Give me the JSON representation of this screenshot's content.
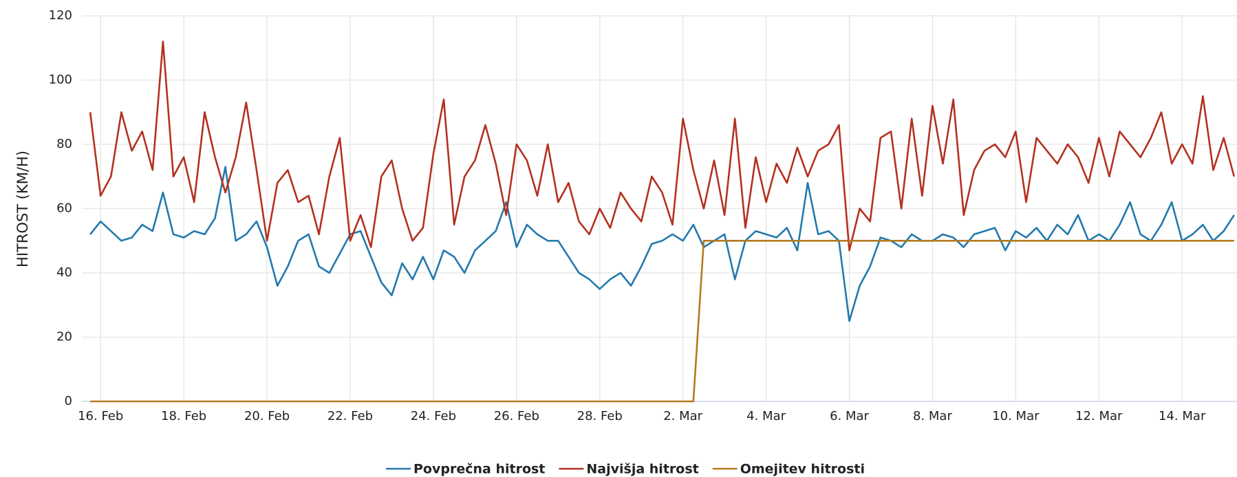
{
  "chart_data": {
    "type": "line",
    "y_label": "HITROST (KM/H)",
    "x": [
      15.75,
      16,
      16.25,
      16.5,
      16.75,
      17,
      17.25,
      17.5,
      17.75,
      18,
      18.25,
      18.5,
      18.75,
      19,
      19.25,
      19.5,
      19.75,
      20,
      20.25,
      20.5,
      20.75,
      21,
      21.25,
      21.5,
      21.75,
      22,
      22.25,
      22.5,
      22.75,
      23,
      23.25,
      23.5,
      23.75,
      24,
      24.25,
      24.5,
      24.75,
      25,
      25.25,
      25.5,
      25.75,
      26,
      26.25,
      26.5,
      26.75,
      27,
      27.25,
      27.5,
      27.75,
      28,
      28.25,
      28.5,
      28.75,
      29,
      29.25,
      29.5,
      29.75,
      30,
      30.25,
      30.5,
      30.75,
      31,
      31.25,
      31.5,
      31.75,
      32,
      32.25,
      32.5,
      32.75,
      33,
      33.25,
      33.5,
      33.75,
      34,
      34.25,
      34.5,
      34.75,
      35,
      35.25,
      35.5,
      35.75,
      36,
      36.25,
      36.5,
      36.75,
      37,
      37.25,
      37.5,
      37.75,
      38,
      38.25,
      38.5,
      38.75,
      39,
      39.25,
      39.5,
      39.75,
      40,
      40.25,
      40.5,
      40.75,
      41,
      41.25,
      41.5,
      41.75,
      42,
      42.25,
      42.5,
      42.75,
      43,
      43.25
    ],
    "series": [
      {
        "name": "Povprečna hitrost",
        "color": "#2279ad",
        "values": [
          52,
          56,
          53,
          50,
          51,
          55,
          53,
          65,
          52,
          51,
          53,
          52,
          57,
          73,
          50,
          52,
          56,
          48,
          36,
          42,
          50,
          52,
          42,
          40,
          46,
          52,
          53,
          45,
          37,
          33,
          43,
          38,
          45,
          38,
          47,
          45,
          40,
          47,
          50,
          53,
          62,
          48,
          55,
          52,
          50,
          50,
          45,
          40,
          38,
          35,
          38,
          40,
          36,
          42,
          49,
          50,
          52,
          50,
          55,
          48,
          50,
          52,
          38,
          50,
          53,
          52,
          51,
          54,
          47,
          68,
          52,
          53,
          50,
          25,
          36,
          42,
          51,
          50,
          48,
          52,
          50,
          50,
          52,
          51,
          48,
          52,
          53,
          54,
          47,
          53,
          51,
          54,
          50,
          55,
          52,
          58,
          50,
          52,
          50,
          55,
          62,
          52,
          50,
          55,
          62,
          50,
          52,
          55,
          50,
          53,
          58
        ]
      },
      {
        "name": "Najvišja hitrost",
        "color": "#b3311f",
        "values": [
          90,
          64,
          70,
          90,
          78,
          84,
          72,
          112,
          70,
          76,
          62,
          90,
          76,
          65,
          76,
          93,
          72,
          50,
          68,
          72,
          62,
          64,
          52,
          70,
          82,
          50,
          58,
          48,
          70,
          75,
          60,
          50,
          54,
          77,
          94,
          55,
          70,
          75,
          86,
          74,
          58,
          80,
          75,
          64,
          80,
          62,
          68,
          56,
          52,
          60,
          54,
          65,
          60,
          56,
          70,
          65,
          55,
          88,
          72,
          60,
          75,
          58,
          88,
          54,
          76,
          62,
          74,
          68,
          79,
          70,
          78,
          80,
          86,
          47,
          60,
          56,
          82,
          84,
          60,
          88,
          64,
          92,
          74,
          94,
          58,
          72,
          78,
          80,
          76,
          84,
          62,
          82,
          78,
          74,
          80,
          76,
          68,
          82,
          70,
          84,
          80,
          76,
          82,
          90,
          74,
          80,
          74,
          95,
          72,
          82,
          70
        ]
      },
      {
        "name": "Omejitev hitrosti",
        "color": "#b27a1f",
        "values": [
          0,
          0,
          0,
          0,
          0,
          0,
          0,
          0,
          0,
          0,
          0,
          0,
          0,
          0,
          0,
          0,
          0,
          0,
          0,
          0,
          0,
          0,
          0,
          0,
          0,
          0,
          0,
          0,
          0,
          0,
          0,
          0,
          0,
          0,
          0,
          0,
          0,
          0,
          0,
          0,
          0,
          0,
          0,
          0,
          0,
          0,
          0,
          0,
          0,
          0,
          0,
          0,
          0,
          0,
          0,
          0,
          0,
          0,
          0,
          50,
          50,
          50,
          50,
          50,
          50,
          50,
          50,
          50,
          50,
          50,
          50,
          50,
          50,
          50,
          50,
          50,
          50,
          50,
          50,
          50,
          50,
          50,
          50,
          50,
          50,
          50,
          50,
          50,
          50,
          50,
          50,
          50,
          50,
          50,
          50,
          50,
          50,
          50,
          50,
          50,
          50,
          50,
          50,
          50,
          50,
          50,
          50,
          50,
          50,
          50,
          50
        ]
      }
    ],
    "xlim": [
      15.55,
      43.32
    ],
    "xticks": [
      {
        "value": 16,
        "label": "16. Feb"
      },
      {
        "value": 18,
        "label": "18. Feb"
      },
      {
        "value": 20,
        "label": "20. Feb"
      },
      {
        "value": 22,
        "label": "22. Feb"
      },
      {
        "value": 24,
        "label": "24. Feb"
      },
      {
        "value": 26,
        "label": "26. Feb"
      },
      {
        "value": 28,
        "label": "28. Feb"
      },
      {
        "value": 30,
        "label": "2. Mar"
      },
      {
        "value": 32,
        "label": "4. Mar"
      },
      {
        "value": 34,
        "label": "6. Mar"
      },
      {
        "value": 36,
        "label": "8. Mar"
      },
      {
        "value": 38,
        "label": "10. Mar"
      },
      {
        "value": 40,
        "label": "12. Mar"
      },
      {
        "value": 42,
        "label": "14. Mar"
      }
    ],
    "ylim": [
      0,
      120
    ],
    "yticks": [
      0,
      20,
      40,
      60,
      80,
      100,
      120
    ],
    "grid": true,
    "legend": "bottom"
  }
}
